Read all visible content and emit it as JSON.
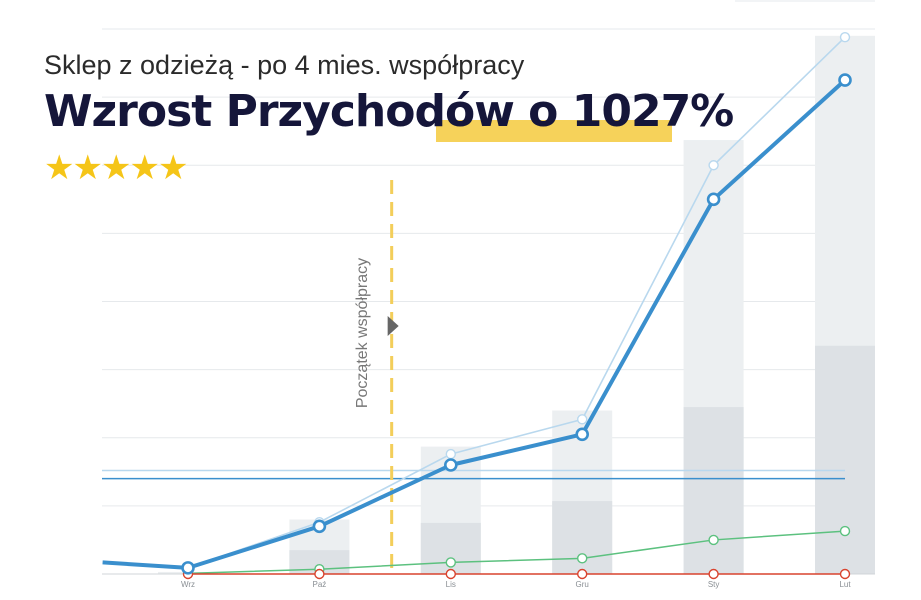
{
  "header": {
    "subtitle": "Sklep z odzieżą - po 4 mies. współpracy",
    "title": "Wzrost Przychodów o 1027%",
    "rating_stars": 5
  },
  "annotation": {
    "label": "Początek współpracy"
  },
  "colors": {
    "revenue_line": "#3a8fcd",
    "revenue_line_light": "#b9d8ee",
    "green_line": "#5cc17f",
    "red_line": "#d9432e",
    "bar_light": "#eceff1",
    "bar_dark": "#dde1e5",
    "dashed_marker": "#f3ce5a",
    "star": "#f5c518",
    "highlight": "#f6d25a"
  },
  "chart_data": {
    "type": "line",
    "categories": [
      "Wrz",
      "Paź",
      "Lis",
      "Gru",
      "Sty",
      "Lut"
    ],
    "x": [
      0,
      1,
      2,
      3,
      4,
      5
    ],
    "series": [
      {
        "name": "revenue",
        "style": "thick",
        "x": [
          -0.65,
          0,
          1,
          2,
          3,
          4,
          5
        ],
        "values": [
          17,
          9,
          70,
          160,
          205,
          550,
          725
        ]
      },
      {
        "name": "revenue_light",
        "style": "thin",
        "x": [
          0,
          1,
          2,
          3,
          4,
          5
        ],
        "values": [
          9,
          76,
          176,
          227,
          600,
          788
        ]
      },
      {
        "name": "green",
        "style": "thin",
        "x": [
          0,
          1,
          2,
          3,
          4,
          5
        ],
        "values": [
          1,
          7,
          17,
          23,
          50,
          63
        ]
      },
      {
        "name": "red",
        "style": "thin",
        "x": [
          0,
          1,
          2,
          3,
          4,
          5
        ],
        "values": [
          0,
          0,
          0,
          0,
          0,
          0
        ]
      }
    ],
    "bars_light": [
      3,
      80,
      187,
      240,
      637,
      790
    ],
    "bars_dark": [
      0,
      35,
      75,
      107,
      245,
      335
    ],
    "reference_lines": [
      152,
      140
    ],
    "start_marker_x": 1.55,
    "grid_lines": [
      100,
      200,
      300,
      400,
      500,
      600,
      700,
      800
    ],
    "ylim": [
      0,
      800
    ],
    "title": "Wzrost Przychodów o 1027%",
    "xlabel": "",
    "ylabel": ""
  }
}
